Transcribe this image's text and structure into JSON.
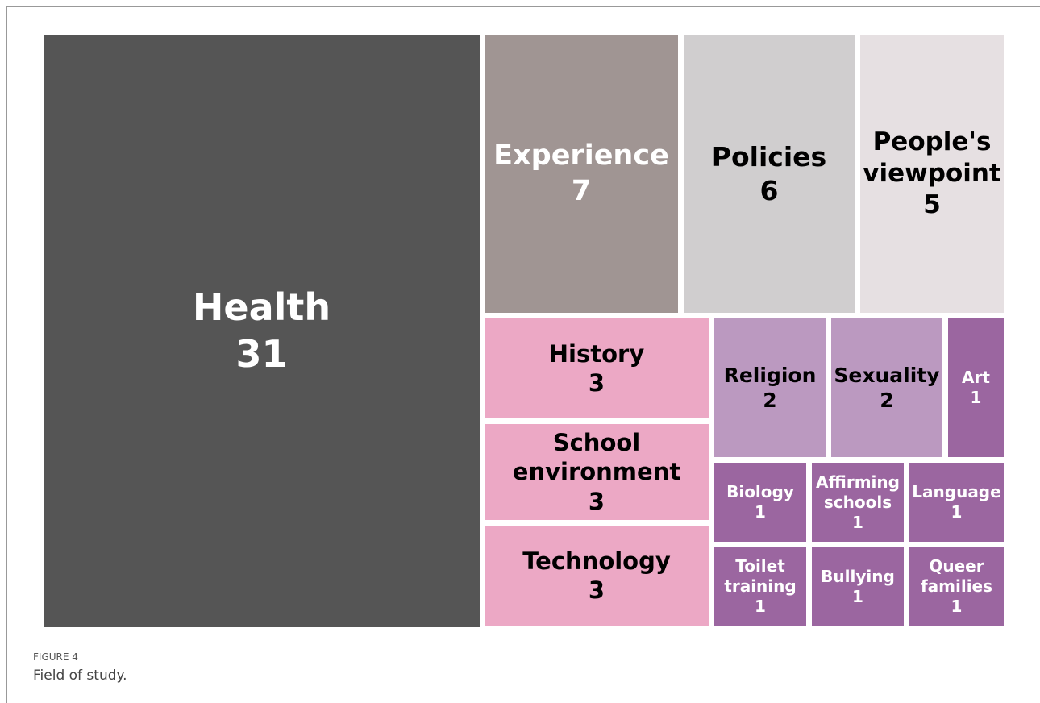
{
  "chart_data": {
    "type": "treemap",
    "categories": [
      "Health",
      "Experience",
      "Policies",
      "People's viewpoint",
      "History",
      "School environment",
      "Technology",
      "Religion",
      "Sexuality",
      "Art",
      "Biology",
      "Affirming schools",
      "Language",
      "Toilet training",
      "Bullying",
      "Queer families"
    ],
    "values": [
      31,
      7,
      6,
      5,
      3,
      3,
      3,
      2,
      2,
      1,
      1,
      1,
      1,
      1,
      1,
      1
    ],
    "colors": [
      "#555555",
      "#a09593",
      "#d0cecf",
      "#e6e0e2",
      "#eca8c5",
      "#eca8c5",
      "#eca8c5",
      "#bb99c0",
      "#bb99c0",
      "#9b66a0",
      "#9b66a0",
      "#9b66a0",
      "#9b66a0",
      "#9b66a0",
      "#9b66a0",
      "#9b66a0"
    ]
  },
  "figure_label": "FIGURE 4",
  "caption": "Field of study."
}
